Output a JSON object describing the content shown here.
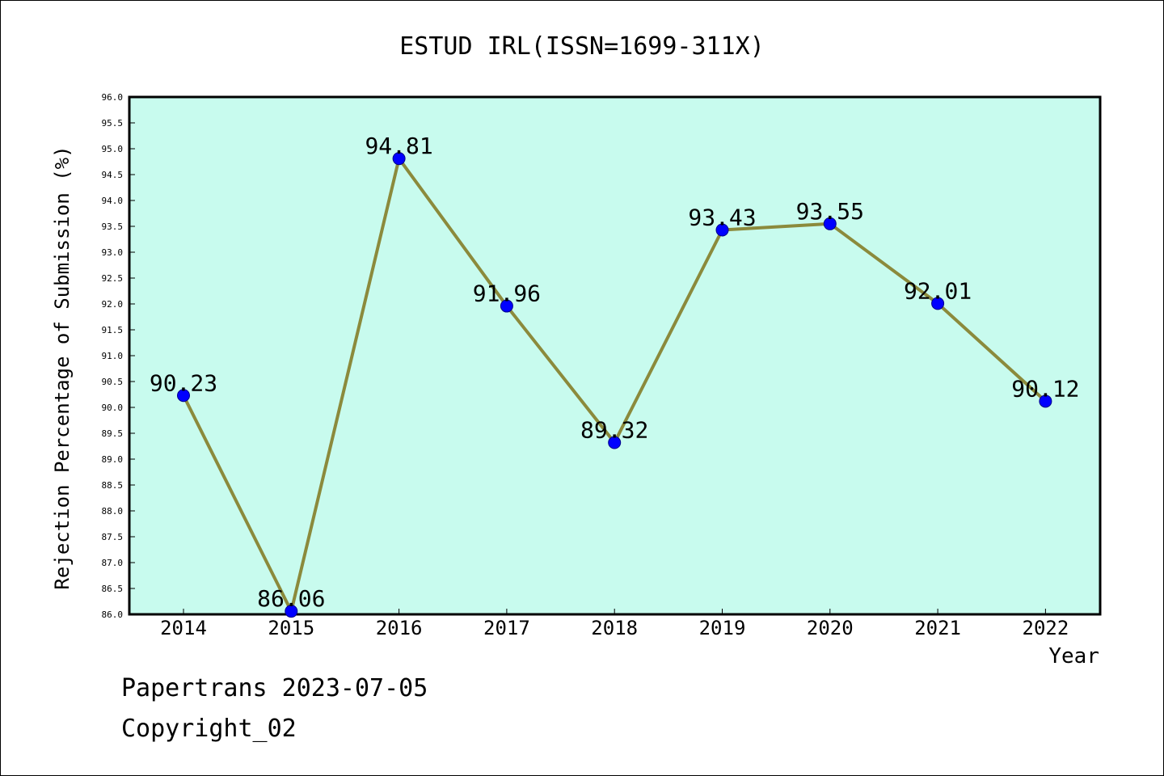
{
  "chart_data": {
    "type": "line",
    "title": "ESTUD IRL(ISSN=1699-311X)",
    "xlabel": "Year",
    "ylabel": "Rejection Percentage of Submission (%)",
    "categories": [
      "2014",
      "2015",
      "2016",
      "2017",
      "2018",
      "2019",
      "2020",
      "2021",
      "2022"
    ],
    "series": [
      {
        "values": [
          90.23,
          86.06,
          94.81,
          91.96,
          89.32,
          93.43,
          93.55,
          92.01,
          90.12
        ],
        "labels": [
          "90.23",
          "86.06",
          "94.81",
          "91.96",
          "89.32",
          "93.43",
          "93.55",
          "92.01",
          "90.12"
        ]
      }
    ],
    "ylim": [
      86.0,
      96.0
    ],
    "yticks": [
      "86.0",
      "86.5",
      "87.0",
      "87.5",
      "88.0",
      "88.5",
      "89.0",
      "89.5",
      "90.0",
      "90.5",
      "91.0",
      "91.5",
      "92.0",
      "92.5",
      "93.0",
      "93.5",
      "94.0",
      "94.5",
      "95.0",
      "95.5",
      "96.0"
    ],
    "grid": false,
    "colors": {
      "plot_background": "#c8fbee",
      "line": "#8b8a3c",
      "marker": "#0000ff",
      "marker_edge": "#00008b"
    }
  },
  "footer": {
    "line1": "Papertrans 2023-07-05",
    "line2": "Copyright_02"
  }
}
